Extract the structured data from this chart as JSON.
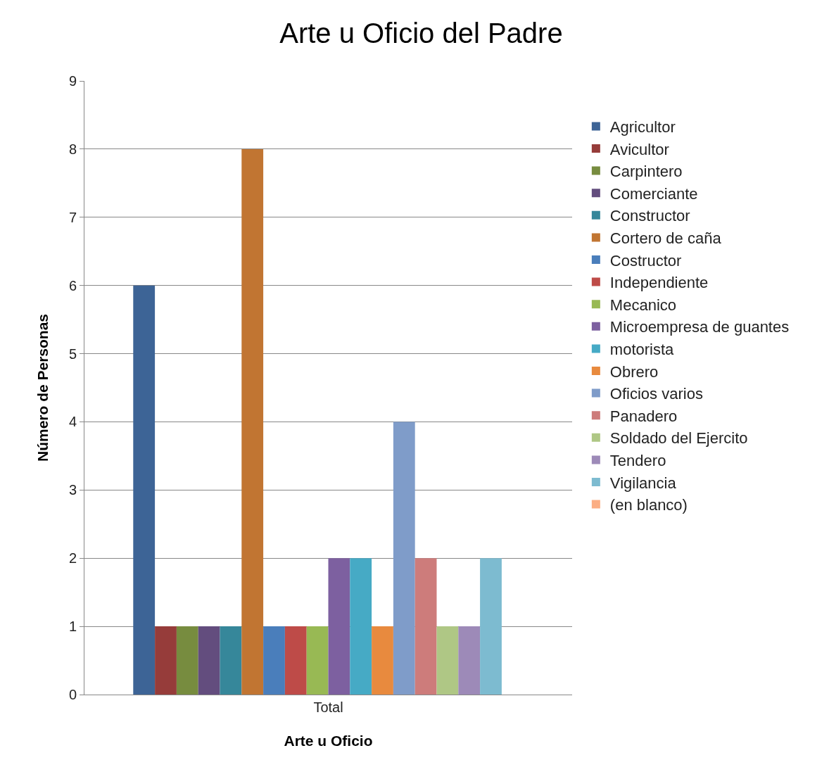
{
  "chart_data": {
    "type": "bar",
    "title": "Arte u Oficio del Padre",
    "xlabel": "Arte u Oficio",
    "ylabel": "Número de Personas",
    "categories": [
      "Total"
    ],
    "series": [
      {
        "name": "Agricultor",
        "color": "#3d6496",
        "values": [
          6
        ]
      },
      {
        "name": "Avicultor",
        "color": "#963c3a",
        "values": [
          1
        ]
      },
      {
        "name": "Carpintero",
        "color": "#778c3f",
        "values": [
          1
        ]
      },
      {
        "name": "Comerciante",
        "color": "#634d7e",
        "values": [
          1
        ]
      },
      {
        "name": "Constructor",
        "color": "#36879a",
        "values": [
          1
        ]
      },
      {
        "name": "Cortero de caña",
        "color": "#c17532",
        "values": [
          8
        ]
      },
      {
        "name": "Costructor",
        "color": "#4a7ebb",
        "values": [
          1
        ]
      },
      {
        "name": "Independiente",
        "color": "#be4b48",
        "values": [
          1
        ]
      },
      {
        "name": "Mecanico",
        "color": "#98b954",
        "values": [
          1
        ]
      },
      {
        "name": "Microempresa de guantes",
        "color": "#7d60a0",
        "values": [
          2
        ]
      },
      {
        "name": "motorista",
        "color": "#46aac5",
        "values": [
          2
        ]
      },
      {
        "name": "Obrero",
        "color": "#e88a3e",
        "values": [
          1
        ]
      },
      {
        "name": "Oficios varios",
        "color": "#7f9cc9",
        "values": [
          4
        ]
      },
      {
        "name": "Panadero",
        "color": "#cd7c7b",
        "values": [
          2
        ]
      },
      {
        "name": "Soldado del Ejercito",
        "color": "#afc785",
        "values": [
          1
        ]
      },
      {
        "name": "Tendero",
        "color": "#9d8ab8",
        "values": [
          1
        ]
      },
      {
        "name": "Vigilancia",
        "color": "#7dbbd0",
        "values": [
          2
        ]
      },
      {
        "name": "(en blanco)",
        "color": "#fbae84",
        "values": [
          null
        ]
      }
    ],
    "ylim": [
      0,
      9
    ],
    "yticks": [
      0,
      1,
      2,
      3,
      4,
      5,
      6,
      7,
      8,
      9
    ],
    "grid": "y",
    "legend": "right"
  }
}
